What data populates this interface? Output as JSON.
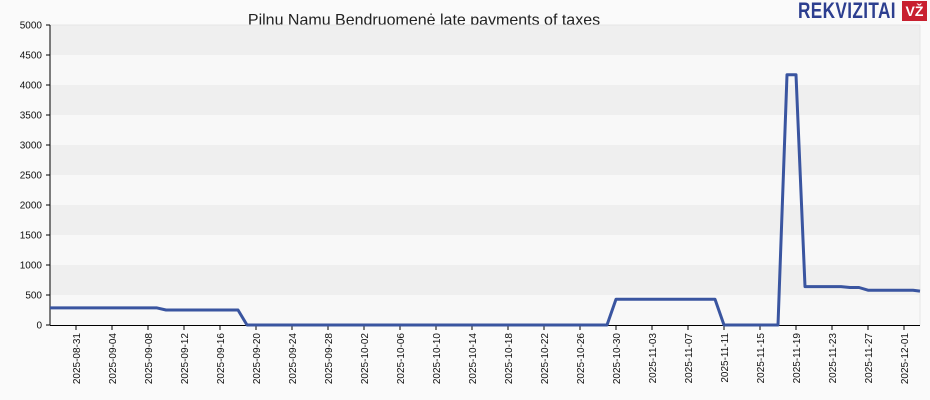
{
  "header": {
    "title": "Pilnų Namų Bendruomenė late payments of taxes",
    "logo_text": "REKVIZITAI",
    "logo_badge": "VŽ"
  },
  "colors": {
    "line": "#3a55a0",
    "band_dark": "#efefef",
    "band_light": "#f8f8f8",
    "logo_text": "#2c3e8f",
    "logo_badge": "#c8202f"
  },
  "chart_data": {
    "type": "line",
    "title": "Pilnų Namų Bendruomenė late payments of taxes",
    "xlabel": "",
    "ylabel": "",
    "ylim": [
      0,
      5000
    ],
    "yticks": [
      0,
      500,
      1000,
      1500,
      2000,
      2500,
      3000,
      3500,
      4000,
      4500,
      5000
    ],
    "xticks": [
      "2025-08-31",
      "2025-09-04",
      "2025-09-08",
      "2025-09-12",
      "2025-09-16",
      "2025-09-20",
      "2025-09-24",
      "2025-09-28",
      "2025-10-02",
      "2025-10-06",
      "2025-10-10",
      "2025-10-14",
      "2025-10-18",
      "2025-10-22",
      "2025-10-26",
      "2025-10-30",
      "2025-11-03",
      "2025-11-07",
      "2025-11-11",
      "2025-11-15",
      "2025-11-19",
      "2025-11-23",
      "2025-11-27",
      "2025-12-01"
    ],
    "grid": "alternating horizontal bands",
    "legend": "none",
    "series": [
      {
        "name": "Late payments of taxes",
        "points": [
          [
            "2025-08-28",
            285
          ],
          [
            "2025-09-09",
            285
          ],
          [
            "2025-09-10",
            250
          ],
          [
            "2025-09-18",
            250
          ],
          [
            "2025-09-19",
            0
          ],
          [
            "2025-10-29",
            0
          ],
          [
            "2025-10-30",
            430
          ],
          [
            "2025-11-10",
            430
          ],
          [
            "2025-11-11",
            0
          ],
          [
            "2025-11-17",
            0
          ],
          [
            "2025-11-18",
            4170
          ],
          [
            "2025-11-19",
            4170
          ],
          [
            "2025-11-20",
            640
          ],
          [
            "2025-11-24",
            640
          ],
          [
            "2025-11-25",
            625
          ],
          [
            "2025-11-26",
            625
          ],
          [
            "2025-11-27",
            580
          ],
          [
            "2025-12-02",
            580
          ],
          [
            "2025-12-03",
            565
          ]
        ]
      }
    ]
  }
}
